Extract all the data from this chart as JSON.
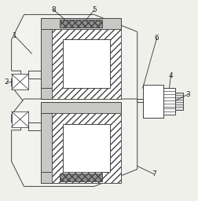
{
  "bg_color": "#f0f0eb",
  "line_color": "#444444",
  "fig_width": 2.52,
  "fig_height": 2.56,
  "dpi": 100
}
